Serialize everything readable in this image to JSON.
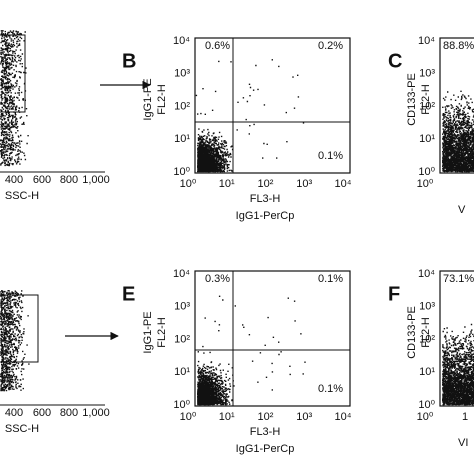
{
  "panels": [
    {
      "x_ticks": [
        "400",
        "600",
        "800",
        "1,000"
      ],
      "x_label": "SSC-H"
    },
    {
      "letter": "B",
      "quadrants": [
        "0.6%",
        "0.2%",
        "0.1%"
      ],
      "x_label": "FL3-H",
      "x_sublabel": "IgG1-PerCp",
      "y_label": "IgG1-PE",
      "y_sublabel": "FL2-H",
      "x_ticks": [
        "10⁰",
        "10¹",
        "10²",
        "10³",
        "10⁴"
      ],
      "y_ticks": [
        "10⁴",
        "10³",
        "10²",
        "10¹",
        "10⁰"
      ]
    },
    {
      "letter": "C",
      "quadrants": [
        "88.8%"
      ],
      "x_label": "V",
      "y_label": "CD133-PE",
      "y_sublabel": "FL2-H",
      "x_ticks": [
        "10⁰"
      ],
      "y_ticks": [
        "10⁴",
        "10³",
        "10²",
        "10¹",
        "10⁰"
      ]
    },
    {
      "x_ticks": [
        "400",
        "600",
        "800",
        "1,000"
      ],
      "x_label": "SSC-H"
    },
    {
      "letter": "E",
      "quadrants": [
        "0.3%",
        "0.1%",
        "0.1%"
      ],
      "x_label": "FL3-H",
      "x_sublabel": "IgG1-PerCp",
      "y_label": "IgG1-PE",
      "y_sublabel": "FL2-H",
      "x_ticks": [
        "10⁰",
        "10¹",
        "10²",
        "10³",
        "10⁴"
      ],
      "y_ticks": [
        "10⁴",
        "10³",
        "10²",
        "10¹",
        "10⁰"
      ]
    },
    {
      "letter": "F",
      "quadrants": [
        "73.1%"
      ],
      "x_label": "VI",
      "y_label": "CD133-PE",
      "y_sublabel": "FL2-H",
      "x_ticks": [
        "10⁰",
        "1"
      ],
      "y_ticks": [
        "10⁴",
        "10³",
        "10²",
        "10¹",
        "10⁰"
      ]
    }
  ]
}
